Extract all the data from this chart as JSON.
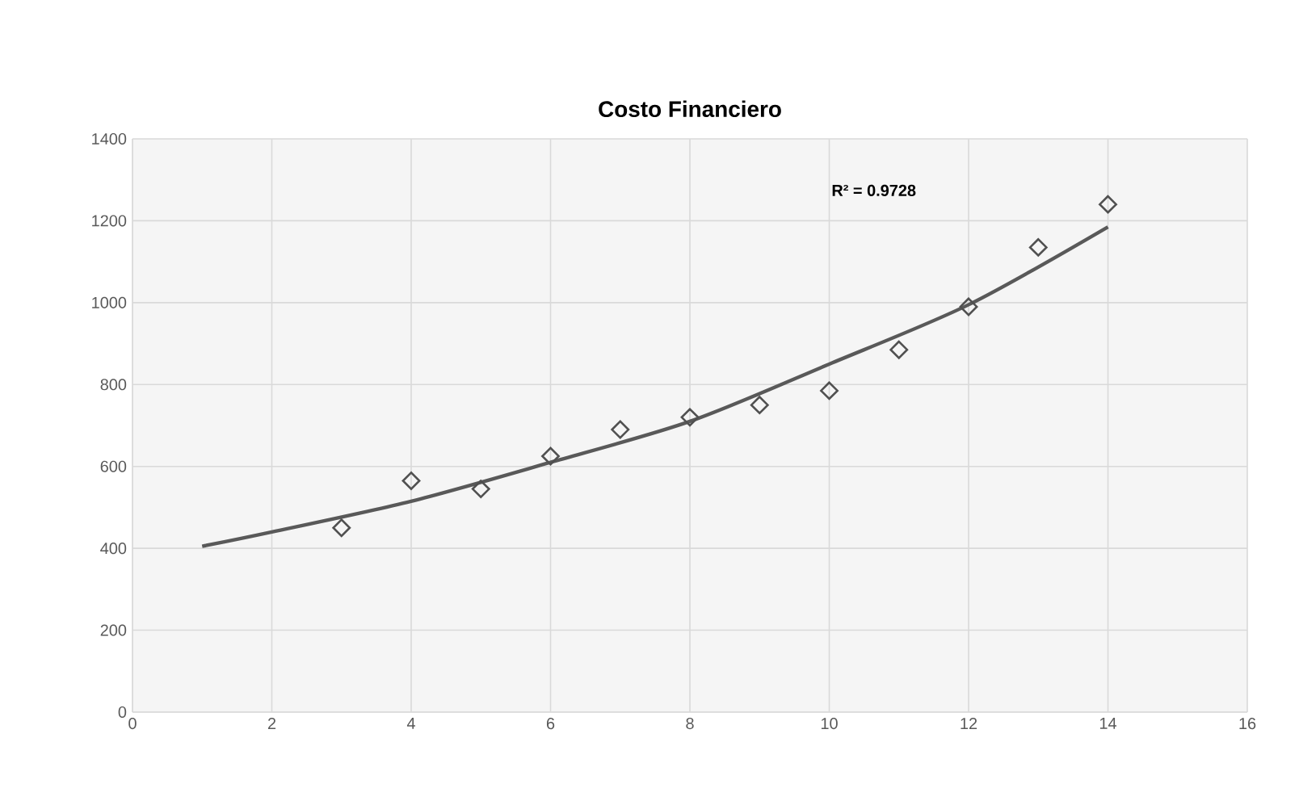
{
  "chart_data": {
    "type": "scatter",
    "title": "Costo Financiero",
    "series": [
      {
        "color": "#505050",
        "marker": "diamond",
        "x": [
          3,
          4,
          5,
          6,
          7,
          8,
          9,
          10,
          11,
          12,
          13,
          14
        ],
        "values": [
          450,
          565,
          545,
          625,
          690,
          720,
          750,
          785,
          885,
          990,
          1135,
          1240
        ]
      },
      {
        "type": "line",
        "color": "#595959",
        "marker": "none",
        "line_style": "solid",
        "x": [
          1,
          2,
          4,
          6,
          8,
          10,
          12,
          14
        ],
        "values": [
          405,
          440,
          515,
          610,
          710,
          850,
          995,
          1185
        ]
      }
    ],
    "xlim": [
      0,
      16
    ],
    "xticks": [
      0,
      2,
      4,
      6,
      8,
      10,
      12,
      14,
      16
    ],
    "ylim": [
      0,
      1400
    ],
    "yticks": [
      0,
      200,
      400,
      600,
      800,
      1000,
      1200,
      1400
    ],
    "grid": true,
    "annotations": [
      "R² = 0.9728"
    ]
  }
}
